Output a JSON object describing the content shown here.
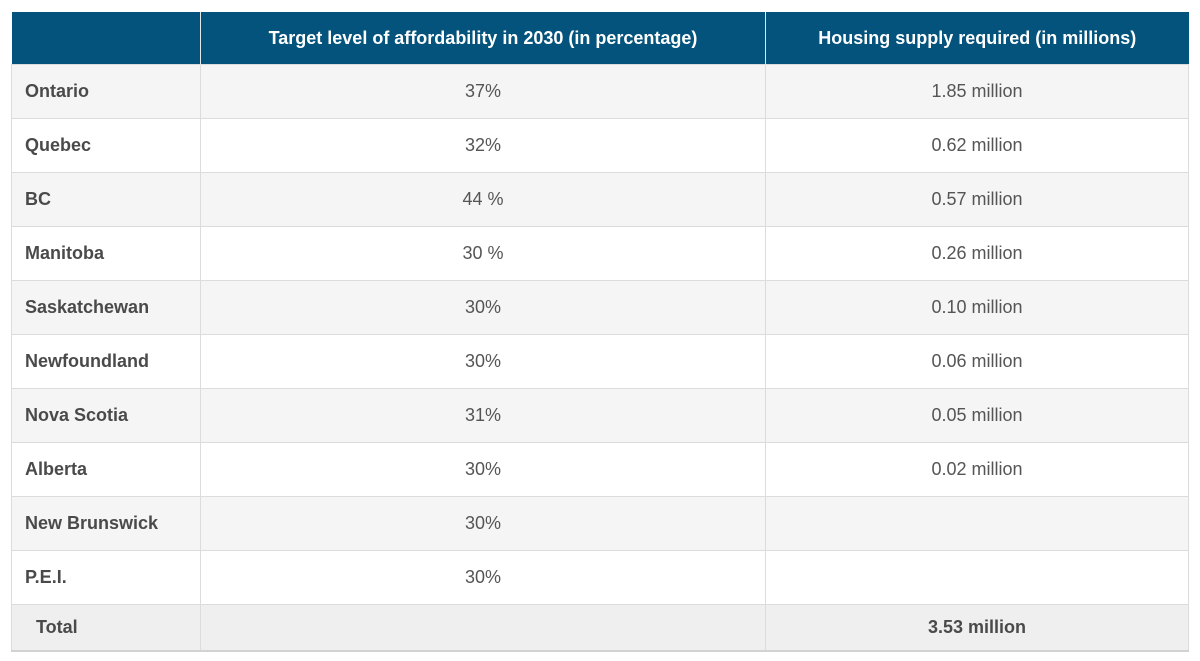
{
  "header": {
    "col1": "",
    "col2": "Target level of affordability in 2030 (in percentage)",
    "col3": "Housing supply required (in millions)"
  },
  "rows": [
    {
      "province": "Ontario",
      "target": "37%",
      "supply": "1.85 million"
    },
    {
      "province": "Quebec",
      "target": "32%",
      "supply": "0.62 million"
    },
    {
      "province": "BC",
      "target": "44 %",
      "supply": "0.57 million"
    },
    {
      "province": "Manitoba",
      "target": "30 %",
      "supply": "0.26 million"
    },
    {
      "province": "Saskatchewan",
      "target": "30%",
      "supply": "0.10 million"
    },
    {
      "province": "Newfoundland",
      "target": "30%",
      "supply": "0.06 million"
    },
    {
      "province": "Nova Scotia",
      "target": "31%",
      "supply": "0.05 million"
    },
    {
      "province": "Alberta",
      "target": "30%",
      "supply": "0.02 million"
    },
    {
      "province": "New Brunswick",
      "target": "30%",
      "supply": ""
    },
    {
      "province": "P.E.I.",
      "target": "30%",
      "supply": ""
    }
  ],
  "total": {
    "label": "Total",
    "target": "",
    "supply": "3.53 million"
  },
  "colors": {
    "header_bg": "#03537d",
    "header_text": "#ffffff",
    "row_alt_bg": "#f5f5f5",
    "text": "#555555"
  }
}
